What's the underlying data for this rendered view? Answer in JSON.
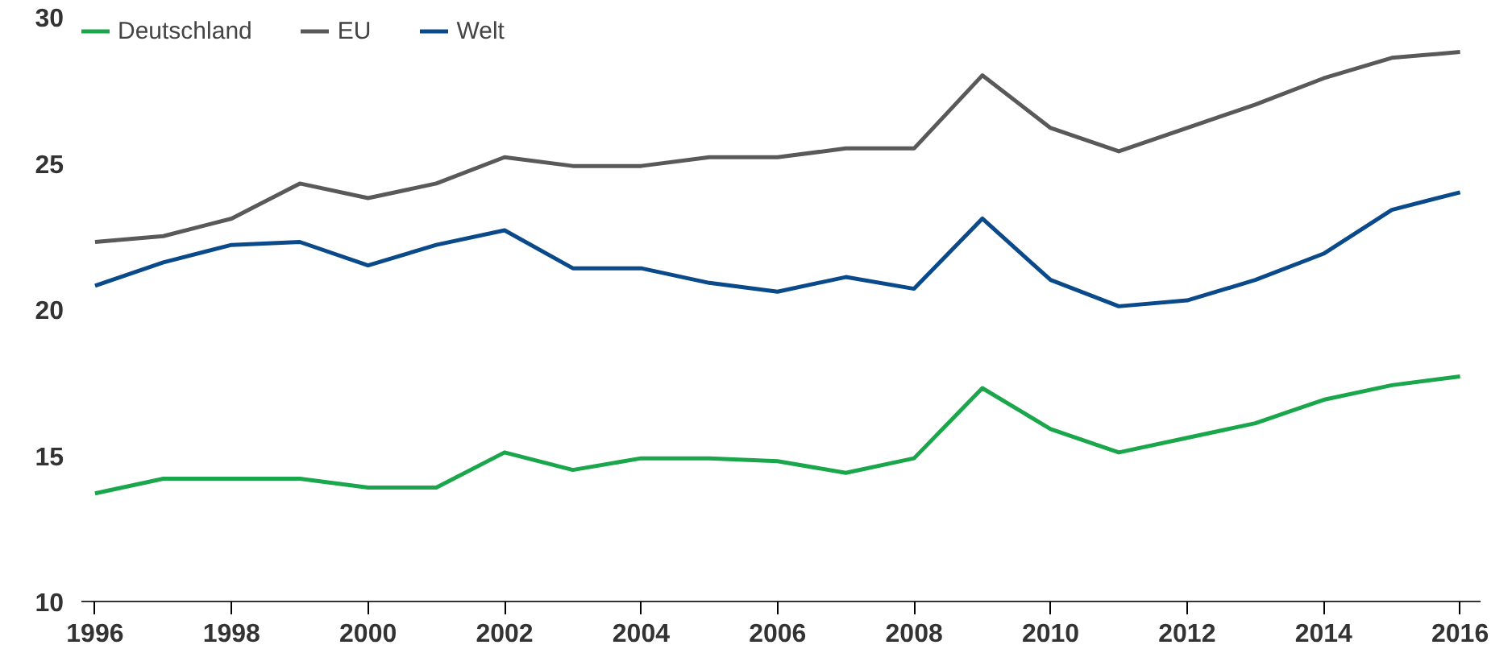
{
  "chart_data": {
    "type": "line",
    "x": [
      1996,
      1997,
      1998,
      1999,
      2000,
      2001,
      2002,
      2003,
      2004,
      2005,
      2006,
      2007,
      2008,
      2009,
      2010,
      2011,
      2012,
      2013,
      2014,
      2015,
      2016
    ],
    "series": [
      {
        "name": "Deutschland",
        "color": "#1aa64a",
        "values": [
          13.7,
          14.2,
          14.2,
          14.2,
          13.9,
          13.9,
          15.1,
          14.5,
          14.9,
          14.9,
          14.8,
          14.4,
          14.9,
          17.3,
          15.9,
          15.1,
          15.6,
          16.1,
          16.9,
          17.4,
          17.7
        ]
      },
      {
        "name": "EU",
        "color": "#595959",
        "values": [
          22.3,
          22.5,
          23.1,
          24.3,
          23.8,
          24.3,
          25.2,
          24.9,
          24.9,
          25.2,
          25.2,
          25.5,
          25.5,
          28.0,
          26.2,
          25.4,
          26.2,
          27.0,
          27.9,
          28.6,
          28.8
        ]
      },
      {
        "name": "Welt",
        "color": "#0a4a8a",
        "values": [
          20.8,
          21.6,
          22.2,
          22.3,
          21.5,
          22.2,
          22.7,
          21.4,
          21.4,
          20.9,
          20.6,
          21.1,
          20.7,
          23.1,
          21.0,
          20.1,
          20.3,
          21.0,
          21.9,
          23.4,
          24.0
        ]
      }
    ],
    "xlim": [
      1995.8,
      2016.3
    ],
    "xticks": [
      1996,
      1998,
      2000,
      2002,
      2004,
      2006,
      2008,
      2010,
      2012,
      2014,
      2016
    ],
    "ylim": [
      10,
      30
    ],
    "yticks": [
      10,
      15,
      20,
      25,
      30
    ],
    "grid": false,
    "legend": "top left",
    "line_style": "solid"
  }
}
